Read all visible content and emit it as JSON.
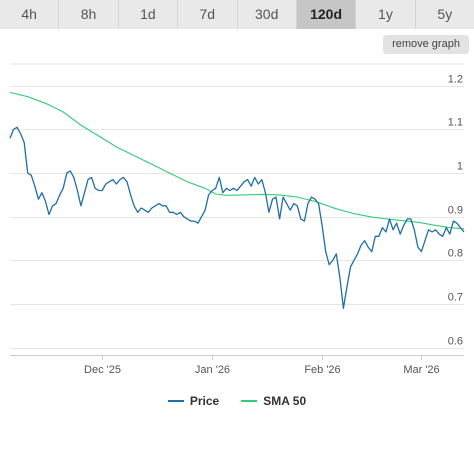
{
  "range_tabs": [
    {
      "label": "4h",
      "active": false
    },
    {
      "label": "8h",
      "active": false
    },
    {
      "label": "1d",
      "active": false
    },
    {
      "label": "7d",
      "active": false
    },
    {
      "label": "30d",
      "active": false
    },
    {
      "label": "120d",
      "active": true
    },
    {
      "label": "1y",
      "active": false
    },
    {
      "label": "5y",
      "active": false
    }
  ],
  "remove_graph_label": "remove graph",
  "colors": {
    "price": "#1f6fa6",
    "sma": "#33cc77",
    "grid": "#e6e6e6",
    "axis": "#cccccc"
  },
  "chart_data": {
    "type": "line",
    "title": "",
    "xlabel": "",
    "ylabel": "",
    "ylim": [
      0.6,
      1.2
    ],
    "yticks": [
      1.2,
      1.1,
      1,
      0.9,
      0.8,
      0.7,
      0.6
    ],
    "ytick_labels": [
      "1.2",
      "1.1",
      "1",
      "0.9",
      "0.8",
      "0.7",
      "0.6"
    ],
    "grid": true,
    "legend_position": "bottom",
    "x_start": "2025-11-05",
    "x_end": "2026-03-13",
    "xticks": [
      {
        "date": "2025-12-01",
        "label": "Dec '25"
      },
      {
        "date": "2026-01-01",
        "label": "Jan '26"
      },
      {
        "date": "2026-02-01",
        "label": "Feb '26"
      },
      {
        "date": "2026-03-01",
        "label": "Mar '26"
      }
    ],
    "series": [
      {
        "name": "Price",
        "points": [
          [
            "2025-11-05",
            1.08
          ],
          [
            "2025-11-06",
            1.1
          ],
          [
            "2025-11-07",
            1.105
          ],
          [
            "2025-11-08",
            1.09
          ],
          [
            "2025-11-09",
            1.07
          ],
          [
            "2025-11-10",
            1.0
          ],
          [
            "2025-11-11",
            0.995
          ],
          [
            "2025-11-12",
            0.97
          ],
          [
            "2025-11-13",
            0.94
          ],
          [
            "2025-11-14",
            0.955
          ],
          [
            "2025-11-15",
            0.935
          ],
          [
            "2025-11-16",
            0.905
          ],
          [
            "2025-11-17",
            0.925
          ],
          [
            "2025-11-18",
            0.93
          ],
          [
            "2025-11-19",
            0.95
          ],
          [
            "2025-11-20",
            0.965
          ],
          [
            "2025-11-21",
            1.0
          ],
          [
            "2025-11-22",
            1.005
          ],
          [
            "2025-11-23",
            0.99
          ],
          [
            "2025-11-24",
            0.96
          ],
          [
            "2025-11-25",
            0.925
          ],
          [
            "2025-11-26",
            0.955
          ],
          [
            "2025-11-27",
            0.985
          ],
          [
            "2025-11-28",
            0.99
          ],
          [
            "2025-11-29",
            0.965
          ],
          [
            "2025-11-30",
            0.96
          ],
          [
            "2025-12-01",
            0.96
          ],
          [
            "2025-12-02",
            0.975
          ],
          [
            "2025-12-03",
            0.98
          ],
          [
            "2025-12-04",
            0.985
          ],
          [
            "2025-12-05",
            0.975
          ],
          [
            "2025-12-06",
            0.985
          ],
          [
            "2025-12-07",
            0.99
          ],
          [
            "2025-12-08",
            0.98
          ],
          [
            "2025-12-09",
            0.95
          ],
          [
            "2025-12-10",
            0.925
          ],
          [
            "2025-12-11",
            0.91
          ],
          [
            "2025-12-12",
            0.92
          ],
          [
            "2025-12-13",
            0.915
          ],
          [
            "2025-12-14",
            0.91
          ],
          [
            "2025-12-15",
            0.92
          ],
          [
            "2025-12-16",
            0.925
          ],
          [
            "2025-12-17",
            0.93
          ],
          [
            "2025-12-18",
            0.925
          ],
          [
            "2025-12-19",
            0.925
          ],
          [
            "2025-12-20",
            0.91
          ],
          [
            "2025-12-21",
            0.91
          ],
          [
            "2025-12-22",
            0.905
          ],
          [
            "2025-12-23",
            0.91
          ],
          [
            "2025-12-24",
            0.9
          ],
          [
            "2025-12-25",
            0.895
          ],
          [
            "2025-12-26",
            0.89
          ],
          [
            "2025-12-27",
            0.89
          ],
          [
            "2025-12-28",
            0.885
          ],
          [
            "2025-12-29",
            0.9
          ],
          [
            "2025-12-30",
            0.915
          ],
          [
            "2025-12-31",
            0.95
          ],
          [
            "2026-01-01",
            0.96
          ],
          [
            "2026-01-02",
            0.965
          ],
          [
            "2026-01-03",
            0.99
          ],
          [
            "2026-01-04",
            0.955
          ],
          [
            "2026-01-05",
            0.965
          ],
          [
            "2026-01-06",
            0.96
          ],
          [
            "2026-01-07",
            0.965
          ],
          [
            "2026-01-08",
            0.96
          ],
          [
            "2026-01-09",
            0.97
          ],
          [
            "2026-01-10",
            0.98
          ],
          [
            "2026-01-11",
            0.985
          ],
          [
            "2026-01-12",
            0.97
          ],
          [
            "2026-01-13",
            0.99
          ],
          [
            "2026-01-14",
            0.975
          ],
          [
            "2026-01-15",
            0.985
          ],
          [
            "2026-01-16",
            0.955
          ],
          [
            "2026-01-17",
            0.91
          ],
          [
            "2026-01-18",
            0.94
          ],
          [
            "2026-01-19",
            0.945
          ],
          [
            "2026-01-20",
            0.895
          ],
          [
            "2026-01-21",
            0.945
          ],
          [
            "2026-01-22",
            0.93
          ],
          [
            "2026-01-23",
            0.915
          ],
          [
            "2026-01-24",
            0.93
          ],
          [
            "2026-01-25",
            0.925
          ],
          [
            "2026-01-26",
            0.895
          ],
          [
            "2026-01-27",
            0.89
          ],
          [
            "2026-01-28",
            0.93
          ],
          [
            "2026-01-29",
            0.945
          ],
          [
            "2026-01-30",
            0.94
          ],
          [
            "2026-01-31",
            0.93
          ],
          [
            "2026-02-01",
            0.88
          ],
          [
            "2026-02-02",
            0.82
          ],
          [
            "2026-02-03",
            0.79
          ],
          [
            "2026-02-04",
            0.8
          ],
          [
            "2026-02-05",
            0.815
          ],
          [
            "2026-02-06",
            0.76
          ],
          [
            "2026-02-07",
            0.69
          ],
          [
            "2026-02-08",
            0.74
          ],
          [
            "2026-02-09",
            0.785
          ],
          [
            "2026-02-10",
            0.8
          ],
          [
            "2026-02-11",
            0.815
          ],
          [
            "2026-02-12",
            0.835
          ],
          [
            "2026-02-13",
            0.845
          ],
          [
            "2026-02-14",
            0.83
          ],
          [
            "2026-02-15",
            0.82
          ],
          [
            "2026-02-16",
            0.855
          ],
          [
            "2026-02-17",
            0.855
          ],
          [
            "2026-02-18",
            0.875
          ],
          [
            "2026-02-19",
            0.865
          ],
          [
            "2026-02-20",
            0.895
          ],
          [
            "2026-02-21",
            0.87
          ],
          [
            "2026-02-22",
            0.885
          ],
          [
            "2026-02-23",
            0.86
          ],
          [
            "2026-02-24",
            0.88
          ],
          [
            "2026-02-25",
            0.895
          ],
          [
            "2026-02-26",
            0.895
          ],
          [
            "2026-02-27",
            0.87
          ],
          [
            "2026-02-28",
            0.83
          ],
          [
            "2026-03-01",
            0.82
          ],
          [
            "2026-03-02",
            0.845
          ],
          [
            "2026-03-03",
            0.87
          ],
          [
            "2026-03-04",
            0.865
          ],
          [
            "2026-03-05",
            0.87
          ],
          [
            "2026-03-06",
            0.86
          ],
          [
            "2026-03-07",
            0.855
          ],
          [
            "2026-03-08",
            0.875
          ],
          [
            "2026-03-09",
            0.86
          ],
          [
            "2026-03-10",
            0.89
          ],
          [
            "2026-03-11",
            0.885
          ],
          [
            "2026-03-12",
            0.875
          ],
          [
            "2026-03-13",
            0.865
          ]
        ]
      },
      {
        "name": "SMA 50",
        "points": [
          [
            "2025-11-05",
            1.185
          ],
          [
            "2025-11-10",
            1.175
          ],
          [
            "2025-11-15",
            1.16
          ],
          [
            "2025-11-20",
            1.14
          ],
          [
            "2025-11-25",
            1.11
          ],
          [
            "2025-11-30",
            1.085
          ],
          [
            "2025-12-05",
            1.06
          ],
          [
            "2025-12-10",
            1.04
          ],
          [
            "2025-12-15",
            1.02
          ],
          [
            "2025-12-20",
            1.0
          ],
          [
            "2025-12-25",
            0.98
          ],
          [
            "2025-12-30",
            0.965
          ],
          [
            "2026-01-02",
            0.952
          ],
          [
            "2026-01-05",
            0.949
          ],
          [
            "2026-01-10",
            0.95
          ],
          [
            "2026-01-15",
            0.951
          ],
          [
            "2026-01-20",
            0.95
          ],
          [
            "2026-01-25",
            0.945
          ],
          [
            "2026-01-30",
            0.935
          ],
          [
            "2026-02-05",
            0.918
          ],
          [
            "2026-02-10",
            0.907
          ],
          [
            "2026-02-15",
            0.899
          ],
          [
            "2026-02-20",
            0.894
          ],
          [
            "2026-02-25",
            0.89
          ],
          [
            "2026-03-01",
            0.886
          ],
          [
            "2026-03-05",
            0.88
          ],
          [
            "2026-03-09",
            0.875
          ],
          [
            "2026-03-13",
            0.872
          ]
        ]
      }
    ]
  }
}
